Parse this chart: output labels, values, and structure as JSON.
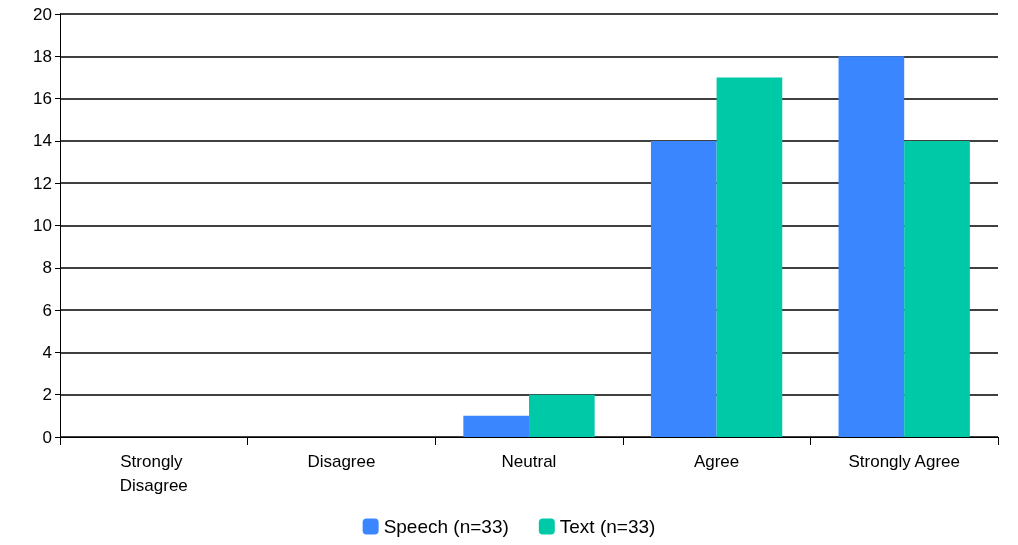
{
  "chart_data": {
    "type": "bar",
    "categories": [
      "Strongly Disagree",
      "Disagree",
      "Neutral",
      "Agree",
      "Strongly Agree"
    ],
    "series": [
      {
        "name": "Speech (n=33)",
        "color": "#3a86ff",
        "values": [
          0,
          0,
          1,
          14,
          18
        ]
      },
      {
        "name": "Text (n=33)",
        "color": "#00c9a7",
        "values": [
          0,
          0,
          2,
          17,
          14
        ]
      }
    ],
    "ylim": [
      0,
      20
    ],
    "yticks": [
      0,
      2,
      4,
      6,
      8,
      10,
      12,
      14,
      16,
      18,
      20
    ],
    "grid": "y",
    "legend": "bottom"
  }
}
